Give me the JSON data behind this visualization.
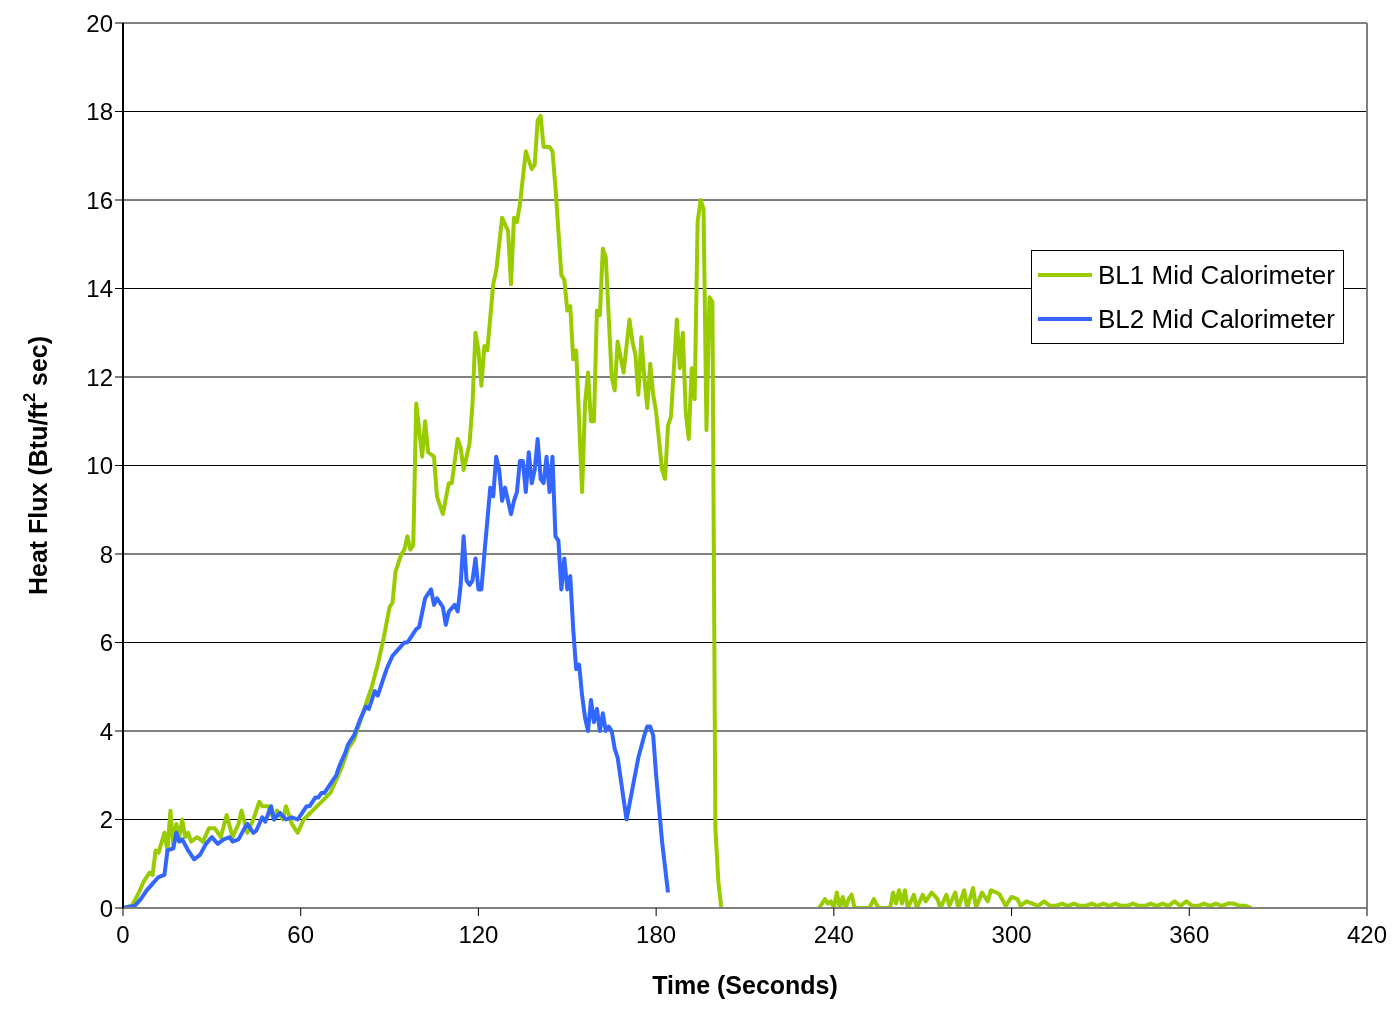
{
  "chart_data": {
    "type": "line",
    "xlabel": "Time (Seconds)",
    "ylabel": "Heat Flux (Btu/ft$^{2}$ sec)",
    "xlim": [
      0,
      420
    ],
    "xticks": [
      0,
      60,
      120,
      180,
      240,
      300,
      360,
      420
    ],
    "ylim": [
      0,
      20
    ],
    "yticks": [
      0,
      2,
      4,
      6,
      8,
      10,
      12,
      14,
      16,
      18,
      20
    ],
    "grid": "y",
    "legend": "right",
    "marker": "none",
    "line_style": "solid",
    "series": [
      {
        "name": "BL1 Mid Calorimeter",
        "color": "#99cc00",
        "x": [
          0,
          3,
          5,
          7,
          9,
          10,
          11,
          12,
          14,
          15,
          16,
          17,
          18,
          19,
          20,
          21,
          22,
          23,
          25,
          27,
          29,
          31,
          33,
          35,
          37,
          39,
          40,
          42,
          44,
          46,
          47,
          49,
          51,
          52,
          54,
          55,
          57,
          59,
          61,
          64,
          67,
          70,
          72,
          74,
          76,
          78,
          80,
          82,
          84,
          86,
          88,
          90,
          91,
          92,
          94,
          95,
          96,
          97,
          98,
          99,
          101,
          102,
          103,
          105,
          106,
          108,
          110,
          111,
          113,
          114,
          115,
          117,
          118,
          119,
          120,
          121,
          122,
          123,
          125,
          126,
          128,
          130,
          131,
          132,
          133,
          134,
          136,
          138,
          139,
          140,
          141,
          142,
          144,
          145,
          146,
          148,
          149,
          150,
          151,
          152,
          153,
          155,
          156,
          157,
          158,
          159,
          160,
          161,
          162,
          163,
          165,
          166,
          167,
          169,
          171,
          172,
          173,
          174,
          175,
          176,
          177,
          178,
          179,
          180,
          182,
          183,
          184,
          185,
          187,
          188,
          189,
          190,
          191,
          192,
          193,
          194,
          195,
          196,
          197,
          198,
          199,
          200,
          201,
          202,
          218,
          235,
          236,
          237,
          238,
          239,
          240,
          241,
          242,
          243,
          244,
          245,
          246,
          247,
          252,
          253.5,
          255,
          259,
          260,
          261,
          262,
          263,
          264,
          265,
          267,
          268,
          270,
          271,
          273,
          275,
          276,
          278,
          279,
          281,
          282,
          284,
          285,
          287,
          288,
          290,
          292,
          293,
          295,
          296,
          298,
          300,
          302,
          303,
          305,
          307,
          309,
          311,
          313,
          315,
          317,
          319,
          321,
          323,
          325,
          327,
          329,
          331,
          333,
          335,
          337,
          339,
          341,
          343,
          345,
          347,
          349,
          351,
          353,
          355,
          357,
          359,
          361,
          363,
          365,
          367,
          369,
          371,
          373,
          375,
          377,
          379,
          381
        ],
        "values": [
          0,
          0.05,
          0.3,
          0.6,
          0.8,
          0.75,
          1.3,
          1.25,
          1.7,
          1.3,
          2.2,
          1.4,
          1.9,
          1.6,
          2.0,
          1.6,
          1.7,
          1.5,
          1.6,
          1.5,
          1.8,
          1.8,
          1.6,
          2.1,
          1.6,
          1.9,
          2.2,
          1.7,
          2.0,
          2.4,
          2.3,
          2.3,
          2.0,
          2.2,
          2.0,
          2.3,
          1.9,
          1.7,
          2.0,
          2.2,
          2.4,
          2.6,
          2.9,
          3.2,
          3.6,
          3.8,
          4.2,
          4.6,
          5.0,
          5.5,
          6.1,
          6.8,
          6.9,
          7.6,
          8.0,
          8.1,
          8.4,
          8.1,
          8.2,
          11.4,
          10.2,
          11.0,
          10.3,
          10.2,
          9.3,
          8.9,
          9.6,
          9.6,
          10.6,
          10.4,
          9.9,
          10.5,
          11.4,
          13.0,
          12.6,
          11.8,
          12.7,
          12.6,
          14.1,
          14.4,
          15.6,
          15.3,
          14.1,
          15.6,
          15.5,
          15.9,
          17.1,
          16.7,
          16.8,
          17.8,
          17.9,
          17.2,
          17.2,
          17.1,
          16.3,
          14.3,
          14.2,
          13.5,
          13.6,
          12.4,
          12.6,
          9.4,
          11.4,
          12.1,
          11.0,
          11.0,
          13.5,
          13.4,
          14.9,
          14.7,
          12.0,
          11.7,
          12.8,
          12.1,
          13.3,
          12.8,
          12.5,
          11.6,
          12.9,
          12.0,
          11.3,
          12.3,
          11.6,
          11.2,
          9.9,
          9.7,
          10.9,
          11.1,
          13.3,
          12.2,
          13.0,
          11.2,
          10.6,
          12.2,
          11.5,
          15.5,
          16.0,
          15.8,
          10.8,
          13.8,
          13.7,
          1.8,
          0.6,
          0,
          null,
          0,
          0.1,
          0.2,
          0.1,
          0.15,
          0,
          0.35,
          0,
          0.25,
          0,
          0.2,
          0.3,
          0,
          0,
          0.2,
          0,
          0,
          0.35,
          0.1,
          0.4,
          0.1,
          0.4,
          0,
          0.3,
          0,
          0.3,
          0.15,
          0.35,
          0.2,
          0,
          0.3,
          0.05,
          0.35,
          0,
          0.4,
          0,
          0.45,
          0,
          0.35,
          0.15,
          0.4,
          0.35,
          0.3,
          0.05,
          0.25,
          0.2,
          0.05,
          0.15,
          0.1,
          0.05,
          0.15,
          0.05,
          0.05,
          0.1,
          0.05,
          0.1,
          0.05,
          0.05,
          0.1,
          0.05,
          0.1,
          0.05,
          0.1,
          0.05,
          0.05,
          0.1,
          0.05,
          0.05,
          0.1,
          0.05,
          0.1,
          0.05,
          0.15,
          0.05,
          0.15,
          0.05,
          0.05,
          0.1,
          0.05,
          0.1,
          0.05,
          0.1,
          0.1,
          0.05,
          0.05,
          0
        ]
      },
      {
        "name": "BL2 Mid Calorimeter",
        "color": "#3366ff",
        "x": [
          0,
          4,
          6,
          8,
          10,
          12,
          14,
          15,
          17,
          18,
          19,
          20,
          22,
          24,
          26,
          28,
          30,
          32,
          34,
          36,
          37,
          39,
          41,
          42,
          44,
          45,
          47,
          48,
          50,
          51,
          53,
          55,
          57,
          59,
          61,
          62,
          63,
          65,
          66,
          67,
          68,
          70,
          72,
          73,
          75,
          76,
          78,
          80,
          82,
          83,
          85,
          86,
          88,
          89,
          91,
          93,
          95,
          96,
          97,
          99,
          100,
          102,
          104,
          105,
          106,
          108,
          109,
          110,
          112,
          113,
          114,
          115,
          116,
          117,
          118,
          119,
          120,
          121,
          122,
          124,
          125,
          126,
          127,
          128,
          129,
          131,
          132,
          133,
          134,
          135,
          136,
          137,
          138,
          139,
          140,
          141,
          142,
          143,
          144,
          145,
          146,
          147,
          148,
          149,
          150,
          151,
          152,
          153,
          154,
          155,
          156,
          157,
          158,
          159,
          160,
          161,
          162,
          163,
          164,
          165,
          166,
          167,
          170,
          172,
          174,
          176,
          177,
          178,
          179,
          180,
          182,
          184
        ],
        "values": [
          0,
          0.05,
          0.2,
          0.4,
          0.55,
          0.7,
          0.75,
          1.3,
          1.35,
          1.7,
          1.5,
          1.55,
          1.3,
          1.1,
          1.2,
          1.45,
          1.6,
          1.45,
          1.55,
          1.6,
          1.5,
          1.55,
          1.8,
          1.9,
          1.7,
          1.75,
          2.05,
          1.95,
          2.3,
          2.0,
          2.15,
          2.0,
          2.05,
          2.0,
          2.2,
          2.3,
          2.3,
          2.5,
          2.5,
          2.6,
          2.6,
          2.8,
          3.0,
          3.2,
          3.5,
          3.7,
          3.9,
          4.25,
          4.55,
          4.5,
          4.9,
          4.8,
          5.2,
          5.4,
          5.7,
          5.85,
          6.0,
          6.0,
          6.1,
          6.3,
          6.35,
          7.0,
          7.2,
          6.85,
          7.0,
          6.8,
          6.4,
          6.7,
          6.85,
          6.7,
          7.3,
          8.4,
          7.4,
          7.3,
          7.4,
          7.9,
          7.2,
          7.2,
          8.0,
          9.5,
          9.3,
          10.2,
          9.9,
          9.2,
          9.5,
          8.9,
          9.2,
          9.4,
          10.1,
          10.1,
          9.4,
          10.3,
          9.6,
          9.9,
          10.6,
          9.7,
          9.6,
          10.2,
          9.4,
          10.2,
          8.4,
          8.3,
          7.2,
          7.9,
          7.2,
          7.5,
          6.3,
          5.4,
          5.5,
          4.8,
          4.3,
          4.0,
          4.7,
          4.2,
          4.5,
          4.0,
          4.4,
          4.0,
          4.1,
          4.0,
          3.6,
          3.4,
          2.0,
          2.7,
          3.4,
          3.9,
          4.1,
          4.1,
          3.9,
          3.0,
          1.5,
          0.35
        ]
      }
    ]
  }
}
